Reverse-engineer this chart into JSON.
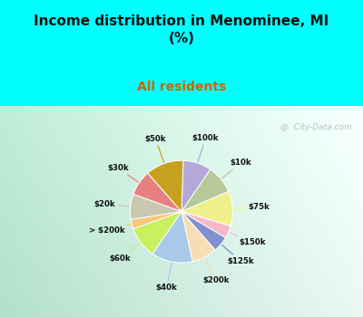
{
  "title": "Income distribution in Menominee, MI\n(%)",
  "subtitle": "All residents",
  "title_color": "#111111",
  "subtitle_color": "#cc6600",
  "bg_top": "#00ffff",
  "watermark": "@  City-Data.com",
  "slices": [
    {
      "label": "$100k",
      "value": 9,
      "color": "#b3a8d8"
    },
    {
      "label": "$10k",
      "value": 9,
      "color": "#b5c99a"
    },
    {
      "label": "$75k",
      "value": 11,
      "color": "#f0f08a"
    },
    {
      "label": "$150k",
      "value": 4,
      "color": "#f5b8c8"
    },
    {
      "label": "$125k",
      "value": 5,
      "color": "#8090d0"
    },
    {
      "label": "$200k",
      "value": 8,
      "color": "#f5deb3"
    },
    {
      "label": "$40k",
      "value": 13,
      "color": "#aac8e8"
    },
    {
      "label": "$60k",
      "value": 10,
      "color": "#c8f060"
    },
    {
      "label": "> $200k",
      "value": 3,
      "color": "#f5c87a"
    },
    {
      "label": "$20k",
      "value": 8,
      "color": "#c8c8b0"
    },
    {
      "label": "$30k",
      "value": 8,
      "color": "#e88080"
    },
    {
      "label": "$50k",
      "value": 12,
      "color": "#c8a020"
    }
  ],
  "label_order": [
    "$100k",
    "$10k",
    "$75k",
    "$150k",
    "$125k",
    "$200k",
    "$40k",
    "$60k",
    "> $200k",
    "$20k",
    "$30k",
    "$50k"
  ]
}
